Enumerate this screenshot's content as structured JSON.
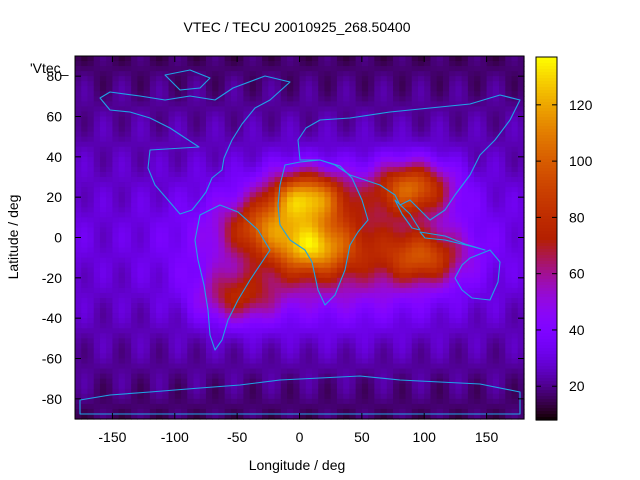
{
  "chart_data": {
    "type": "heatmap",
    "title": "VTEC / TECU 20010925_268.50400",
    "xlabel": "Longitude / deg",
    "ylabel": "Latitude / deg",
    "xlim": [
      -180,
      180
    ],
    "ylim": [
      -90,
      90
    ],
    "xticks": [
      -150,
      -100,
      -50,
      0,
      50,
      100,
      150
    ],
    "yticks": [
      -80,
      -60,
      -40,
      -20,
      0,
      20,
      40,
      60,
      80
    ],
    "colorbar": {
      "range": [
        8,
        137
      ],
      "ticks": [
        20,
        40,
        60,
        80,
        100,
        120
      ],
      "palette": "black-purple-red-orange-yellow"
    },
    "series_label": "'Vtec_",
    "notes": "Global vertical TEC map; maxima near 20N/0-20E (~130 TECU) and 25N/80-100E (~120 TECU); broad enhancement 40S-30N over Atlantic, Africa and Indian Ocean; minima at high latitudes (~10-20 TECU).",
    "peaks": [
      {
        "lon": 5,
        "lat": 20,
        "value": 130
      },
      {
        "lon": 90,
        "lat": 25,
        "value": 120
      },
      {
        "lon": 10,
        "lat": -5,
        "value": 110
      },
      {
        "lon": 100,
        "lat": -10,
        "value": 100
      },
      {
        "lon": -50,
        "lat": -30,
        "value": 92
      },
      {
        "lon": -30,
        "lat": 5,
        "value": 95
      }
    ]
  }
}
